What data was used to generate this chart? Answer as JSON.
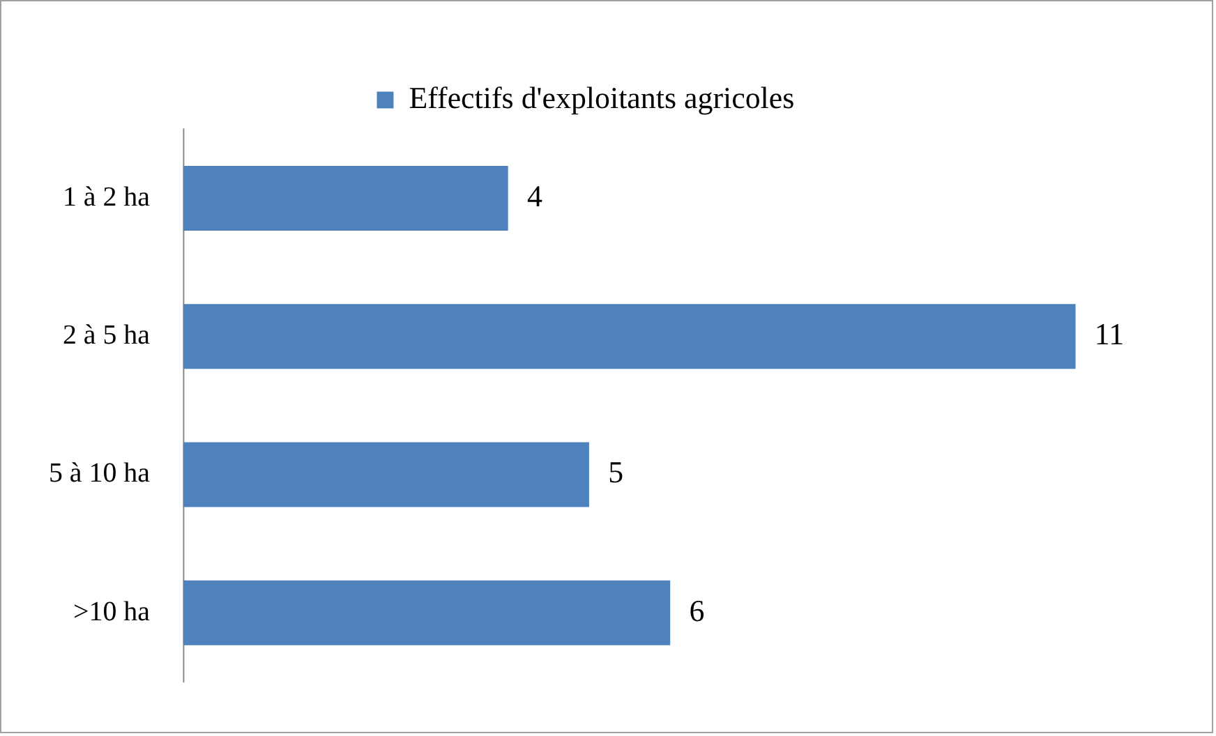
{
  "chart_data": {
    "type": "bar",
    "orientation": "horizontal",
    "categories": [
      "1 à 2 ha",
      "2 à 5 ha",
      "5 à 10 ha",
      ">10 ha"
    ],
    "series": [
      {
        "name": "Effectifs d'exploitants agricoles",
        "color": "#4f81bd",
        "values": [
          4,
          11,
          5,
          6
        ]
      }
    ],
    "data_labels": true,
    "legend": "top",
    "grid": false
  }
}
